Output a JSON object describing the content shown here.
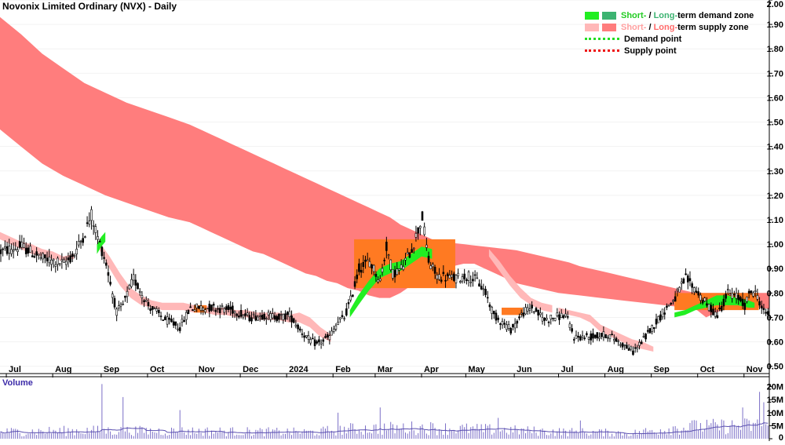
{
  "chart_data": {
    "type": "candlestick",
    "title": "Novonix Limited Ordinary (NVX) - Daily",
    "price_axis": {
      "ylim": [
        0.47,
        2.0
      ],
      "ticks": [
        "0.50",
        "0.60",
        "0.70",
        "0.80",
        "0.90",
        "1.00",
        "1.10",
        "1.20",
        "1.30",
        "1.40",
        "1.50",
        "1.60",
        "1.70",
        "1.80",
        "1.90",
        "2.00"
      ]
    },
    "volume_axis": {
      "label": "Volume",
      "ylim": [
        0,
        22
      ],
      "ticks": [
        {
          "v": 0,
          "t": "0"
        },
        {
          "v": 5,
          "t": "5M"
        },
        {
          "v": 10,
          "t": "10M"
        },
        {
          "v": 15,
          "t": "15M"
        },
        {
          "v": 20,
          "t": "20M"
        }
      ]
    },
    "x_axis": {
      "months": [
        "Jul",
        "Aug",
        "Sep",
        "Oct",
        "Nov",
        "Dec",
        "2024",
        "Feb",
        "Mar",
        "Apr",
        "May",
        "Jun",
        "Jul",
        "Aug",
        "Sep",
        "Oct",
        "Nov"
      ]
    },
    "legend": {
      "position": "top-right",
      "demand": {
        "short": "Short-",
        "sep": " / ",
        "long": "Long-",
        "rest": "term demand zone"
      },
      "supply": {
        "short": "Short-",
        "sep": " / ",
        "long": "Long-",
        "rest": "term supply zone"
      },
      "demand_point": "Demand point",
      "supply_point": "Supply point"
    },
    "colors": {
      "long_supply": "#ff7d7d",
      "short_supply": "#ffb8b8",
      "overlap": "#ff7a22",
      "short_demand": "#22ee22",
      "long_demand": "#3cb371",
      "demand_point": "#22dd22",
      "supply_point": "#ee1111",
      "candle": "#000000",
      "volume": "#7b6fc7",
      "volume_ma": "#5a4fb0"
    },
    "long_supply_band": {
      "x": [
        0,
        10,
        20,
        30,
        40,
        50,
        60,
        70,
        80,
        90,
        95,
        100,
        105,
        110,
        115,
        120,
        125,
        130,
        135,
        140,
        145,
        150,
        155,
        160,
        165,
        170,
        175,
        180,
        185,
        190,
        195,
        200,
        205,
        210,
        215,
        220,
        225,
        230,
        235,
        240,
        245,
        250,
        255,
        260,
        265,
        270,
        275,
        280,
        285,
        290,
        295,
        300,
        305,
        310,
        315,
        320,
        325,
        330,
        335,
        340,
        345,
        350,
        355,
        360,
        365
      ],
      "upper": [
        1.93,
        1.86,
        1.78,
        1.72,
        1.66,
        1.62,
        1.58,
        1.55,
        1.52,
        1.49,
        1.47,
        1.45,
        1.43,
        1.41,
        1.39,
        1.37,
        1.35,
        1.33,
        1.31,
        1.29,
        1.27,
        1.25,
        1.23,
        1.21,
        1.19,
        1.17,
        1.15,
        1.13,
        1.11,
        1.08,
        1.06,
        1.04,
        1.02,
        1.01,
        1.005,
        1.0,
        0.995,
        0.99,
        0.985,
        0.98,
        0.975,
        0.965,
        0.955,
        0.945,
        0.935,
        0.925,
        0.91,
        0.9,
        0.89,
        0.88,
        0.87,
        0.86,
        0.85,
        0.84,
        0.83,
        0.82,
        0.81,
        0.8,
        0.8,
        0.8,
        0.8,
        0.8,
        0.8,
        0.8,
        0.8
      ],
      "lower": [
        1.47,
        1.4,
        1.33,
        1.28,
        1.24,
        1.2,
        1.17,
        1.14,
        1.11,
        1.09,
        1.07,
        1.05,
        1.03,
        1.01,
        0.99,
        0.97,
        0.96,
        0.94,
        0.92,
        0.9,
        0.88,
        0.87,
        0.85,
        0.84,
        0.82,
        0.81,
        0.79,
        0.78,
        0.78,
        0.8,
        0.83,
        0.86,
        0.88,
        0.9,
        0.91,
        0.92,
        0.92,
        0.9,
        0.88,
        0.86,
        0.84,
        0.83,
        0.82,
        0.81,
        0.8,
        0.795,
        0.79,
        0.785,
        0.78,
        0.775,
        0.77,
        0.765,
        0.76,
        0.755,
        0.75,
        0.745,
        0.74,
        0.735,
        0.7,
        0.72,
        0.74,
        0.745,
        0.745,
        0.74,
        0.735
      ]
    },
    "short_supply_band": {
      "segments": [
        {
          "x": [
            0,
            5,
            10,
            15,
            20,
            25,
            30,
            35
          ],
          "upper": [
            1.05,
            1.03,
            1.01,
            1.0,
            0.98,
            0.97,
            0.95,
            0.96
          ],
          "lower": [
            1.02,
            1.0,
            0.98,
            0.96,
            0.95,
            0.94,
            0.93,
            0.94
          ]
        },
        {
          "x": [
            47,
            52,
            57,
            62,
            67,
            72,
            77,
            82,
            87,
            92,
            97,
            102,
            107,
            112,
            117,
            122,
            127,
            132,
            137,
            142,
            147,
            152,
            157
          ],
          "upper": [
            1.01,
            0.95,
            0.88,
            0.82,
            0.79,
            0.77,
            0.76,
            0.76,
            0.76,
            0.75,
            0.75,
            0.74,
            0.74,
            0.73,
            0.73,
            0.72,
            0.72,
            0.72,
            0.71,
            0.72,
            0.7,
            0.66,
            0.63
          ],
          "lower": [
            0.98,
            0.9,
            0.83,
            0.78,
            0.75,
            0.74,
            0.73,
            0.73,
            0.73,
            0.72,
            0.72,
            0.71,
            0.71,
            0.7,
            0.7,
            0.69,
            0.69,
            0.69,
            0.68,
            0.68,
            0.66,
            0.62,
            0.6
          ]
        },
        {
          "x": [
            232,
            237,
            242,
            247,
            252,
            257,
            262
          ],
          "upper": [
            0.98,
            0.93,
            0.87,
            0.82,
            0.78,
            0.76,
            0.75
          ],
          "lower": [
            0.95,
            0.89,
            0.83,
            0.78,
            0.75,
            0.73,
            0.72
          ]
        },
        {
          "x": [
            265,
            270,
            275,
            280,
            285,
            290,
            295,
            300,
            305,
            310
          ],
          "upper": [
            0.74,
            0.73,
            0.72,
            0.71,
            0.67,
            0.65,
            0.63,
            0.61,
            0.6,
            0.58
          ],
          "lower": [
            0.72,
            0.71,
            0.7,
            0.68,
            0.64,
            0.62,
            0.6,
            0.58,
            0.57,
            0.56
          ]
        }
      ]
    },
    "overlap_zones": [
      {
        "x0": 168,
        "x1": 216,
        "top": 1.02,
        "bottom": 0.82
      },
      {
        "x0": 238,
        "x1": 248,
        "top": 0.74,
        "bottom": 0.71
      },
      {
        "x0": 92,
        "x1": 98,
        "top": 0.75,
        "bottom": 0.72
      },
      {
        "x0": 320,
        "x1": 360,
        "top": 0.8,
        "bottom": 0.73
      }
    ],
    "short_demand_band": {
      "segments": [
        {
          "x": [
            46,
            48,
            50
          ],
          "upper": [
            1.0,
            1.03,
            1.05
          ],
          "lower": [
            0.96,
            0.99,
            1.01
          ]
        },
        {
          "x": [
            166,
            170,
            175,
            180,
            185,
            190,
            195,
            200,
            205
          ],
          "upper": [
            0.73,
            0.79,
            0.85,
            0.9,
            0.92,
            0.93,
            0.96,
            0.99,
            0.98
          ],
          "lower": [
            0.7,
            0.75,
            0.81,
            0.86,
            0.88,
            0.89,
            0.92,
            0.95,
            0.94
          ]
        },
        {
          "x": [
            320,
            325,
            330,
            335,
            340,
            345,
            350,
            355,
            358
          ],
          "upper": [
            0.72,
            0.73,
            0.75,
            0.77,
            0.79,
            0.79,
            0.78,
            0.77,
            0.76
          ],
          "lower": [
            0.7,
            0.71,
            0.73,
            0.74,
            0.75,
            0.75,
            0.75,
            0.74,
            0.74
          ]
        }
      ]
    },
    "price_seed": [
      [
        0,
        0.97
      ],
      [
        10,
        0.99
      ],
      [
        20,
        0.94
      ],
      [
        30,
        0.92
      ],
      [
        35,
        0.96
      ],
      [
        40,
        1.05
      ],
      [
        43,
        1.12
      ],
      [
        46,
        1.03
      ],
      [
        50,
        0.92
      ],
      [
        55,
        0.72
      ],
      [
        58,
        0.75
      ],
      [
        63,
        0.86
      ],
      [
        70,
        0.75
      ],
      [
        78,
        0.69
      ],
      [
        85,
        0.66
      ],
      [
        90,
        0.74
      ],
      [
        100,
        0.74
      ],
      [
        110,
        0.73
      ],
      [
        118,
        0.7
      ],
      [
        125,
        0.71
      ],
      [
        133,
        0.7
      ],
      [
        137,
        0.71
      ],
      [
        142,
        0.65
      ],
      [
        146,
        0.61
      ],
      [
        150,
        0.59
      ],
      [
        156,
        0.62
      ],
      [
        160,
        0.68
      ],
      [
        163,
        0.7
      ],
      [
        166,
        0.77
      ],
      [
        170,
        0.9
      ],
      [
        175,
        0.93
      ],
      [
        180,
        0.85
      ],
      [
        183,
        0.99
      ],
      [
        186,
        0.88
      ],
      [
        190,
        0.9
      ],
      [
        195,
        0.98
      ],
      [
        200,
        1.11
      ],
      [
        203,
        0.93
      ],
      [
        207,
        0.87
      ],
      [
        215,
        0.86
      ],
      [
        222,
        0.87
      ],
      [
        226,
        0.85
      ],
      [
        230,
        0.8
      ],
      [
        234,
        0.71
      ],
      [
        238,
        0.68
      ],
      [
        242,
        0.65
      ],
      [
        248,
        0.72
      ],
      [
        252,
        0.74
      ],
      [
        258,
        0.69
      ],
      [
        262,
        0.7
      ],
      [
        268,
        0.71
      ],
      [
        272,
        0.62
      ],
      [
        280,
        0.62
      ],
      [
        288,
        0.63
      ],
      [
        295,
        0.59
      ],
      [
        300,
        0.56
      ],
      [
        305,
        0.61
      ],
      [
        310,
        0.67
      ],
      [
        315,
        0.73
      ],
      [
        320,
        0.78
      ],
      [
        325,
        0.86
      ],
      [
        330,
        0.81
      ],
      [
        335,
        0.75
      ],
      [
        340,
        0.71
      ],
      [
        345,
        0.8
      ],
      [
        350,
        0.78
      ],
      [
        353,
        0.75
      ],
      [
        356,
        0.81
      ],
      [
        359,
        0.79
      ],
      [
        362,
        0.72
      ]
    ],
    "volume_seed": [
      [
        0,
        2.2
      ],
      [
        40,
        2.6
      ],
      [
        90,
        2.4
      ],
      [
        150,
        2.1
      ],
      [
        160,
        3.0
      ],
      [
        200,
        3.5
      ],
      [
        260,
        2.3
      ],
      [
        300,
        1.8
      ],
      [
        320,
        3.6
      ],
      [
        360,
        4.2
      ]
    ],
    "volume_spikes": [
      [
        48,
        21
      ],
      [
        58,
        16
      ],
      [
        85,
        11
      ],
      [
        160,
        10
      ],
      [
        180,
        12
      ],
      [
        236,
        8
      ],
      [
        275,
        7
      ],
      [
        330,
        7
      ],
      [
        352,
        12
      ],
      [
        360,
        18
      ],
      [
        362,
        14
      ]
    ]
  }
}
